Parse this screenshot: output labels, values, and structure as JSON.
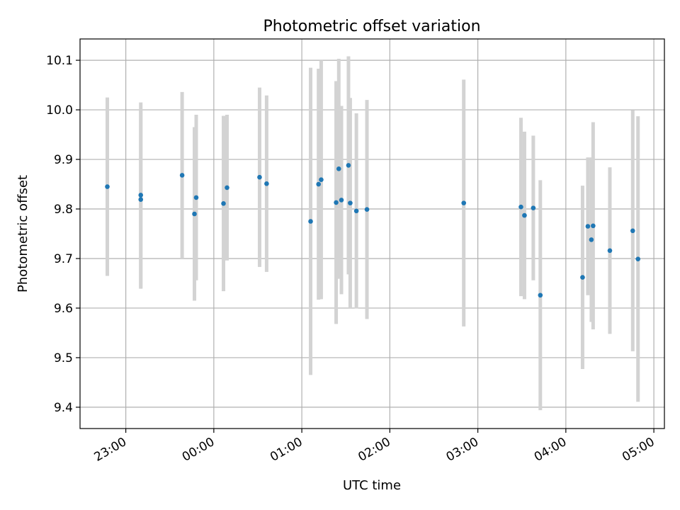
{
  "chart_data": {
    "type": "scatter",
    "title": "Photometric offset variation",
    "xlabel": "UTC time",
    "ylabel": "Photometric offset",
    "x_unit": "hours since 23:00 UTC",
    "xlim": [
      -0.52,
      6.12
    ],
    "ylim": [
      9.357,
      10.143
    ],
    "grid": true,
    "x_ticks": [
      {
        "value": 0,
        "label": "23:00"
      },
      {
        "value": 1,
        "label": "00:00"
      },
      {
        "value": 2,
        "label": "01:00"
      },
      {
        "value": 3,
        "label": "02:00"
      },
      {
        "value": 4,
        "label": "03:00"
      },
      {
        "value": 5,
        "label": "04:00"
      },
      {
        "value": 6,
        "label": "05:00"
      }
    ],
    "y_ticks": [
      {
        "value": 9.4,
        "label": "9.4"
      },
      {
        "value": 9.5,
        "label": "9.5"
      },
      {
        "value": 9.6,
        "label": "9.6"
      },
      {
        "value": 9.7,
        "label": "9.7"
      },
      {
        "value": 9.8,
        "label": "9.8"
      },
      {
        "value": 9.9,
        "label": "9.9"
      },
      {
        "value": 10.0,
        "label": "10.0"
      },
      {
        "value": 10.1,
        "label": "10.1"
      }
    ],
    "point_color": "#1f77b4",
    "errorbar_color": "#d3d3d3",
    "points": [
      {
        "x": -0.21,
        "y": 9.845,
        "err": 0.18
      },
      {
        "x": 0.17,
        "y": 9.819,
        "err": 0.18
      },
      {
        "x": 0.17,
        "y": 9.828,
        "err": 0.187
      },
      {
        "x": 0.64,
        "y": 9.868,
        "err": 0.168
      },
      {
        "x": 0.78,
        "y": 9.79,
        "err": 0.175
      },
      {
        "x": 0.8,
        "y": 9.823,
        "err": 0.167
      },
      {
        "x": 1.11,
        "y": 9.811,
        "err": 0.177
      },
      {
        "x": 1.15,
        "y": 9.843,
        "err": 0.147
      },
      {
        "x": 1.52,
        "y": 9.864,
        "err": 0.181
      },
      {
        "x": 1.6,
        "y": 9.851,
        "err": 0.178
      },
      {
        "x": 2.1,
        "y": 9.775,
        "err": 0.31
      },
      {
        "x": 2.19,
        "y": 9.85,
        "err": 0.233
      },
      {
        "x": 2.22,
        "y": 9.859,
        "err": 0.241
      },
      {
        "x": 2.39,
        "y": 9.813,
        "err": 0.245
      },
      {
        "x": 2.42,
        "y": 9.881,
        "err": 0.222
      },
      {
        "x": 2.45,
        "y": 9.818,
        "err": 0.19
      },
      {
        "x": 2.53,
        "y": 9.888,
        "err": 0.22
      },
      {
        "x": 2.55,
        "y": 9.812,
        "err": 0.212
      },
      {
        "x": 2.62,
        "y": 9.796,
        "err": 0.197
      },
      {
        "x": 2.74,
        "y": 9.799,
        "err": 0.221
      },
      {
        "x": 3.84,
        "y": 9.812,
        "err": 0.249
      },
      {
        "x": 4.49,
        "y": 9.804,
        "err": 0.18
      },
      {
        "x": 4.53,
        "y": 9.787,
        "err": 0.169
      },
      {
        "x": 4.63,
        "y": 9.802,
        "err": 0.146
      },
      {
        "x": 4.71,
        "y": 9.626,
        "err": 0.232
      },
      {
        "x": 5.19,
        "y": 9.662,
        "err": 0.185
      },
      {
        "x": 5.25,
        "y": 9.765,
        "err": 0.139
      },
      {
        "x": 5.29,
        "y": 9.738,
        "err": 0.166
      },
      {
        "x": 5.31,
        "y": 9.766,
        "err": 0.209
      },
      {
        "x": 5.5,
        "y": 9.716,
        "err": 0.168
      },
      {
        "x": 5.76,
        "y": 9.756,
        "err": 0.243
      },
      {
        "x": 5.82,
        "y": 9.699,
        "err": 0.288
      }
    ]
  }
}
